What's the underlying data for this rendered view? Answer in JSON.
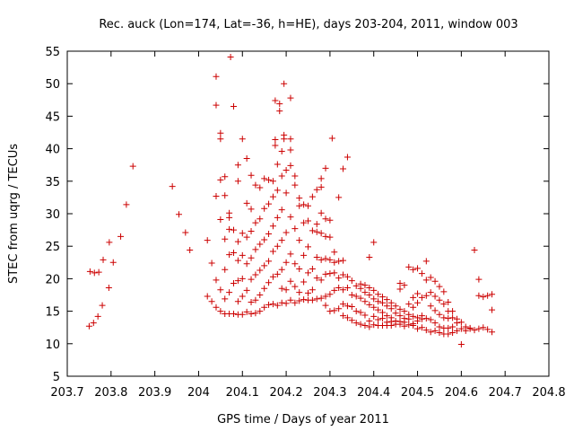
{
  "chart_data": {
    "type": "scatter",
    "title": "Rec. auck (Lon=174, Lat=-36, h=HE), days 203-204, 2011, window 003",
    "xlabel": "GPS time / Days of year 2011",
    "ylabel": "STEC from uqrg / TECUs",
    "xlim": [
      203.7,
      204.8
    ],
    "ylim": [
      5,
      55
    ],
    "xticks": [
      203.7,
      203.8,
      203.9,
      204.0,
      204.1,
      204.2,
      204.3,
      204.4,
      204.5,
      204.6,
      204.7,
      204.8
    ],
    "xtick_labels": [
      "203.7",
      "203.8",
      "203.9",
      "204",
      "204.1",
      "204.2",
      "204.3",
      "204.4",
      "204.5",
      "204.6",
      "204.7",
      "204.8"
    ],
    "yticks": [
      5,
      10,
      15,
      20,
      25,
      30,
      35,
      40,
      45,
      50,
      55
    ],
    "ytick_labels": [
      "5",
      "10",
      "15",
      "20",
      "25",
      "30",
      "35",
      "40",
      "45",
      "50",
      "55"
    ],
    "grid": false,
    "marker": "+",
    "color": "#cc0000",
    "points": [
      [
        203.75,
        12.7
      ],
      [
        203.752,
        21.1
      ],
      [
        203.76,
        13.2
      ],
      [
        203.762,
        20.9
      ],
      [
        203.77,
        14.2
      ],
      [
        203.772,
        21.0
      ],
      [
        203.78,
        15.9
      ],
      [
        203.782,
        22.9
      ],
      [
        203.795,
        18.6
      ],
      [
        203.796,
        25.6
      ],
      [
        203.805,
        22.5
      ],
      [
        203.822,
        26.5
      ],
      [
        203.835,
        31.4
      ],
      [
        203.85,
        37.3
      ],
      [
        203.94,
        34.2
      ],
      [
        203.955,
        29.9
      ],
      [
        203.97,
        27.1
      ],
      [
        203.98,
        24.4
      ],
      [
        204.02,
        17.3
      ],
      [
        204.02,
        25.9
      ],
      [
        204.03,
        22.4
      ],
      [
        204.03,
        16.5
      ],
      [
        204.04,
        15.6
      ],
      [
        204.04,
        19.8
      ],
      [
        204.04,
        32.7
      ],
      [
        204.04,
        46.7
      ],
      [
        204.04,
        51.1
      ],
      [
        204.05,
        15.0
      ],
      [
        204.05,
        18.3
      ],
      [
        204.05,
        29.1
      ],
      [
        204.05,
        35.2
      ],
      [
        204.05,
        41.5
      ],
      [
        204.05,
        42.4
      ],
      [
        204.06,
        14.6
      ],
      [
        204.06,
        16.9
      ],
      [
        204.06,
        21.4
      ],
      [
        204.06,
        26.1
      ],
      [
        204.06,
        32.8
      ],
      [
        204.06,
        35.7
      ],
      [
        204.07,
        14.6
      ],
      [
        204.07,
        17.9
      ],
      [
        204.07,
        23.7
      ],
      [
        204.07,
        27.6
      ],
      [
        204.07,
        29.4
      ],
      [
        204.07,
        30.1
      ],
      [
        204.073,
        54.1
      ],
      [
        204.08,
        14.6
      ],
      [
        204.08,
        19.3
      ],
      [
        204.08,
        24.0
      ],
      [
        204.08,
        27.5
      ],
      [
        204.08,
        46.5
      ],
      [
        204.09,
        14.5
      ],
      [
        204.09,
        16.5
      ],
      [
        204.09,
        19.7
      ],
      [
        204.09,
        22.8
      ],
      [
        204.09,
        25.7
      ],
      [
        204.09,
        35.0
      ],
      [
        204.09,
        37.5
      ],
      [
        204.1,
        14.5
      ],
      [
        204.1,
        17.3
      ],
      [
        204.1,
        20.0
      ],
      [
        204.1,
        23.6
      ],
      [
        204.1,
        27.0
      ],
      [
        204.1,
        41.5
      ],
      [
        204.11,
        14.9
      ],
      [
        204.11,
        18.2
      ],
      [
        204.11,
        22.3
      ],
      [
        204.11,
        26.4
      ],
      [
        204.11,
        31.6
      ],
      [
        204.11,
        38.5
      ],
      [
        204.12,
        14.6
      ],
      [
        204.12,
        16.4
      ],
      [
        204.12,
        19.9
      ],
      [
        204.12,
        23.2
      ],
      [
        204.12,
        27.3
      ],
      [
        204.12,
        30.7
      ],
      [
        204.12,
        35.9
      ],
      [
        204.13,
        14.7
      ],
      [
        204.13,
        16.7
      ],
      [
        204.13,
        20.6
      ],
      [
        204.13,
        24.5
      ],
      [
        204.13,
        28.6
      ],
      [
        204.13,
        34.4
      ],
      [
        204.14,
        15.0
      ],
      [
        204.14,
        17.5
      ],
      [
        204.14,
        21.3
      ],
      [
        204.14,
        25.3
      ],
      [
        204.14,
        29.2
      ],
      [
        204.14,
        34.0
      ],
      [
        204.15,
        15.6
      ],
      [
        204.15,
        18.5
      ],
      [
        204.15,
        22.0
      ],
      [
        204.15,
        26.0
      ],
      [
        204.15,
        30.8
      ],
      [
        204.15,
        35.4
      ],
      [
        204.16,
        16.0
      ],
      [
        204.16,
        19.4
      ],
      [
        204.16,
        22.7
      ],
      [
        204.16,
        26.9
      ],
      [
        204.16,
        31.5
      ],
      [
        204.16,
        35.2
      ],
      [
        204.17,
        16.1
      ],
      [
        204.17,
        20.3
      ],
      [
        204.17,
        24.2
      ],
      [
        204.17,
        28.1
      ],
      [
        204.17,
        32.6
      ],
      [
        204.17,
        35.0
      ],
      [
        204.175,
        40.5
      ],
      [
        204.175,
        41.4
      ],
      [
        204.175,
        47.4
      ],
      [
        204.18,
        15.9
      ],
      [
        204.18,
        20.7
      ],
      [
        204.18,
        25.0
      ],
      [
        204.18,
        29.4
      ],
      [
        204.18,
        33.6
      ],
      [
        204.18,
        37.6
      ],
      [
        204.185,
        45.8
      ],
      [
        204.185,
        46.9
      ],
      [
        204.19,
        16.3
      ],
      [
        204.19,
        18.5
      ],
      [
        204.19,
        21.4
      ],
      [
        204.19,
        25.9
      ],
      [
        204.19,
        30.6
      ],
      [
        204.19,
        35.8
      ],
      [
        204.19,
        39.6
      ],
      [
        204.195,
        41.5
      ],
      [
        204.195,
        42.1
      ],
      [
        204.195,
        50.0
      ],
      [
        204.2,
        16.2
      ],
      [
        204.2,
        18.3
      ],
      [
        204.2,
        22.5
      ],
      [
        204.2,
        27.1
      ],
      [
        204.2,
        33.2
      ],
      [
        204.2,
        36.7
      ],
      [
        204.21,
        16.7
      ],
      [
        204.21,
        19.6
      ],
      [
        204.21,
        23.8
      ],
      [
        204.21,
        29.5
      ],
      [
        204.21,
        37.4
      ],
      [
        204.21,
        39.8
      ],
      [
        204.21,
        41.5
      ],
      [
        204.21,
        47.8
      ],
      [
        204.22,
        16.3
      ],
      [
        204.22,
        18.8
      ],
      [
        204.22,
        22.3
      ],
      [
        204.22,
        27.7
      ],
      [
        204.22,
        34.4
      ],
      [
        204.22,
        35.8
      ],
      [
        204.23,
        16.6
      ],
      [
        204.23,
        17.9
      ],
      [
        204.23,
        21.5
      ],
      [
        204.23,
        25.9
      ],
      [
        204.23,
        31.2
      ],
      [
        204.23,
        32.4
      ],
      [
        204.24,
        16.8
      ],
      [
        204.24,
        19.5
      ],
      [
        204.24,
        23.6
      ],
      [
        204.24,
        28.6
      ],
      [
        204.24,
        31.4
      ],
      [
        204.25,
        16.7
      ],
      [
        204.25,
        17.8
      ],
      [
        204.25,
        20.9
      ],
      [
        204.25,
        24.9
      ],
      [
        204.25,
        28.9
      ],
      [
        204.25,
        31.2
      ],
      [
        204.26,
        16.7
      ],
      [
        204.26,
        18.3
      ],
      [
        204.26,
        21.5
      ],
      [
        204.26,
        27.4
      ],
      [
        204.26,
        32.6
      ],
      [
        204.27,
        16.9
      ],
      [
        204.27,
        20.1
      ],
      [
        204.27,
        23.3
      ],
      [
        204.27,
        27.2
      ],
      [
        204.27,
        28.4
      ],
      [
        204.27,
        33.7
      ],
      [
        204.28,
        17.0
      ],
      [
        204.28,
        19.8
      ],
      [
        204.28,
        22.9
      ],
      [
        204.28,
        27.0
      ],
      [
        204.28,
        30.1
      ],
      [
        204.28,
        34.1
      ],
      [
        204.28,
        35.4
      ],
      [
        204.29,
        15.9
      ],
      [
        204.29,
        17.3
      ],
      [
        204.29,
        20.7
      ],
      [
        204.29,
        23.1
      ],
      [
        204.29,
        26.5
      ],
      [
        204.29,
        29.2
      ],
      [
        204.29,
        37.0
      ],
      [
        204.3,
        15.0
      ],
      [
        204.3,
        17.6
      ],
      [
        204.3,
        20.8
      ],
      [
        204.3,
        22.9
      ],
      [
        204.3,
        26.4
      ],
      [
        204.3,
        29.0
      ],
      [
        204.305,
        41.6
      ],
      [
        204.31,
        15.1
      ],
      [
        204.31,
        18.2
      ],
      [
        204.31,
        20.9
      ],
      [
        204.31,
        22.5
      ],
      [
        204.31,
        24.1
      ],
      [
        204.32,
        15.4
      ],
      [
        204.32,
        18.6
      ],
      [
        204.32,
        20.1
      ],
      [
        204.32,
        22.7
      ],
      [
        204.32,
        32.5
      ],
      [
        204.33,
        14.3
      ],
      [
        204.33,
        16.1
      ],
      [
        204.33,
        18.3
      ],
      [
        204.33,
        20.6
      ],
      [
        204.33,
        22.8
      ],
      [
        204.33,
        36.9
      ],
      [
        204.34,
        14.0
      ],
      [
        204.34,
        15.8
      ],
      [
        204.34,
        18.6
      ],
      [
        204.34,
        20.3
      ],
      [
        204.34,
        38.7
      ],
      [
        204.35,
        13.6
      ],
      [
        204.35,
        15.7
      ],
      [
        204.35,
        17.5
      ],
      [
        204.35,
        19.7
      ],
      [
        204.36,
        13.2
      ],
      [
        204.36,
        15.0
      ],
      [
        204.36,
        17.3
      ],
      [
        204.36,
        18.9
      ],
      [
        204.37,
        13.0
      ],
      [
        204.37,
        14.8
      ],
      [
        204.37,
        17.0
      ],
      [
        204.37,
        18.5
      ],
      [
        204.37,
        19.2
      ],
      [
        204.38,
        12.8
      ],
      [
        204.38,
        14.4
      ],
      [
        204.38,
        16.5
      ],
      [
        204.38,
        17.9
      ],
      [
        204.38,
        19.0
      ],
      [
        204.39,
        12.6
      ],
      [
        204.39,
        13.5
      ],
      [
        204.39,
        16.0
      ],
      [
        204.39,
        17.5
      ],
      [
        204.39,
        18.6
      ],
      [
        204.39,
        23.3
      ],
      [
        204.4,
        12.9
      ],
      [
        204.4,
        14.2
      ],
      [
        204.4,
        15.6
      ],
      [
        204.4,
        16.9
      ],
      [
        204.4,
        18.2
      ],
      [
        204.4,
        25.6
      ],
      [
        204.41,
        12.8
      ],
      [
        204.41,
        13.7
      ],
      [
        204.41,
        15.2
      ],
      [
        204.41,
        16.5
      ],
      [
        204.41,
        17.6
      ],
      [
        204.42,
        12.8
      ],
      [
        204.42,
        13.9
      ],
      [
        204.42,
        14.8
      ],
      [
        204.42,
        16.3
      ],
      [
        204.42,
        17.2
      ],
      [
        204.43,
        12.8
      ],
      [
        204.43,
        13.3
      ],
      [
        204.43,
        14.3
      ],
      [
        204.43,
        15.8
      ],
      [
        204.43,
        16.8
      ],
      [
        204.44,
        12.8
      ],
      [
        204.44,
        13.4
      ],
      [
        204.44,
        14.0
      ],
      [
        204.44,
        15.4
      ],
      [
        204.44,
        16.3
      ],
      [
        204.45,
        13.0
      ],
      [
        204.45,
        13.5
      ],
      [
        204.45,
        14.7
      ],
      [
        204.45,
        15.8
      ],
      [
        204.46,
        13.0
      ],
      [
        204.46,
        13.4
      ],
      [
        204.46,
        14.3
      ],
      [
        204.46,
        15.3
      ],
      [
        204.46,
        18.4
      ],
      [
        204.46,
        19.3
      ],
      [
        204.47,
        12.7
      ],
      [
        204.47,
        13.3
      ],
      [
        204.47,
        13.9
      ],
      [
        204.47,
        15.0
      ],
      [
        204.47,
        19.0
      ],
      [
        204.48,
        12.9
      ],
      [
        204.48,
        13.8
      ],
      [
        204.48,
        14.5
      ],
      [
        204.48,
        16.1
      ],
      [
        204.48,
        21.8
      ],
      [
        204.49,
        12.8
      ],
      [
        204.49,
        13.1
      ],
      [
        204.49,
        14.2
      ],
      [
        204.49,
        15.6
      ],
      [
        204.49,
        17.1
      ],
      [
        204.49,
        21.4
      ],
      [
        204.5,
        12.3
      ],
      [
        204.5,
        13.5
      ],
      [
        204.5,
        14.0
      ],
      [
        204.5,
        16.3
      ],
      [
        204.5,
        17.7
      ],
      [
        204.5,
        21.6
      ],
      [
        204.51,
        12.5
      ],
      [
        204.51,
        13.8
      ],
      [
        204.51,
        14.3
      ],
      [
        204.51,
        17.1
      ],
      [
        204.51,
        20.8
      ],
      [
        204.52,
        12.1
      ],
      [
        204.52,
        13.9
      ],
      [
        204.52,
        17.4
      ],
      [
        204.52,
        19.8
      ],
      [
        204.52,
        22.7
      ],
      [
        204.53,
        11.8
      ],
      [
        204.53,
        13.7
      ],
      [
        204.53,
        15.8
      ],
      [
        204.53,
        17.9
      ],
      [
        204.53,
        20.2
      ],
      [
        204.54,
        12.0
      ],
      [
        204.54,
        13.2
      ],
      [
        204.54,
        15.1
      ],
      [
        204.54,
        17.3
      ],
      [
        204.54,
        19.6
      ],
      [
        204.55,
        11.7
      ],
      [
        204.55,
        12.6
      ],
      [
        204.55,
        14.5
      ],
      [
        204.55,
        16.7
      ],
      [
        204.55,
        18.8
      ],
      [
        204.56,
        11.5
      ],
      [
        204.56,
        12.4
      ],
      [
        204.56,
        14.0
      ],
      [
        204.56,
        16.1
      ],
      [
        204.56,
        18.0
      ],
      [
        204.57,
        11.5
      ],
      [
        204.57,
        12.4
      ],
      [
        204.57,
        13.9
      ],
      [
        204.57,
        15.0
      ],
      [
        204.57,
        16.4
      ],
      [
        204.58,
        11.7
      ],
      [
        204.58,
        12.6
      ],
      [
        204.58,
        14.0
      ],
      [
        204.58,
        15.0
      ],
      [
        204.59,
        12.0
      ],
      [
        204.59,
        13.2
      ],
      [
        204.59,
        13.8
      ],
      [
        204.6,
        9.9
      ],
      [
        204.6,
        12.3
      ],
      [
        204.6,
        13.3
      ],
      [
        204.61,
        12.0
      ],
      [
        204.61,
        12.6
      ],
      [
        204.62,
        12.3
      ],
      [
        204.62,
        12.4
      ],
      [
        204.63,
        12.1
      ],
      [
        204.63,
        24.4
      ],
      [
        204.64,
        12.3
      ],
      [
        204.64,
        17.4
      ],
      [
        204.64,
        19.9
      ],
      [
        204.65,
        12.5
      ],
      [
        204.65,
        17.2
      ],
      [
        204.66,
        12.2
      ],
      [
        204.66,
        17.4
      ],
      [
        204.67,
        11.8
      ],
      [
        204.67,
        15.2
      ],
      [
        204.67,
        17.6
      ]
    ]
  }
}
